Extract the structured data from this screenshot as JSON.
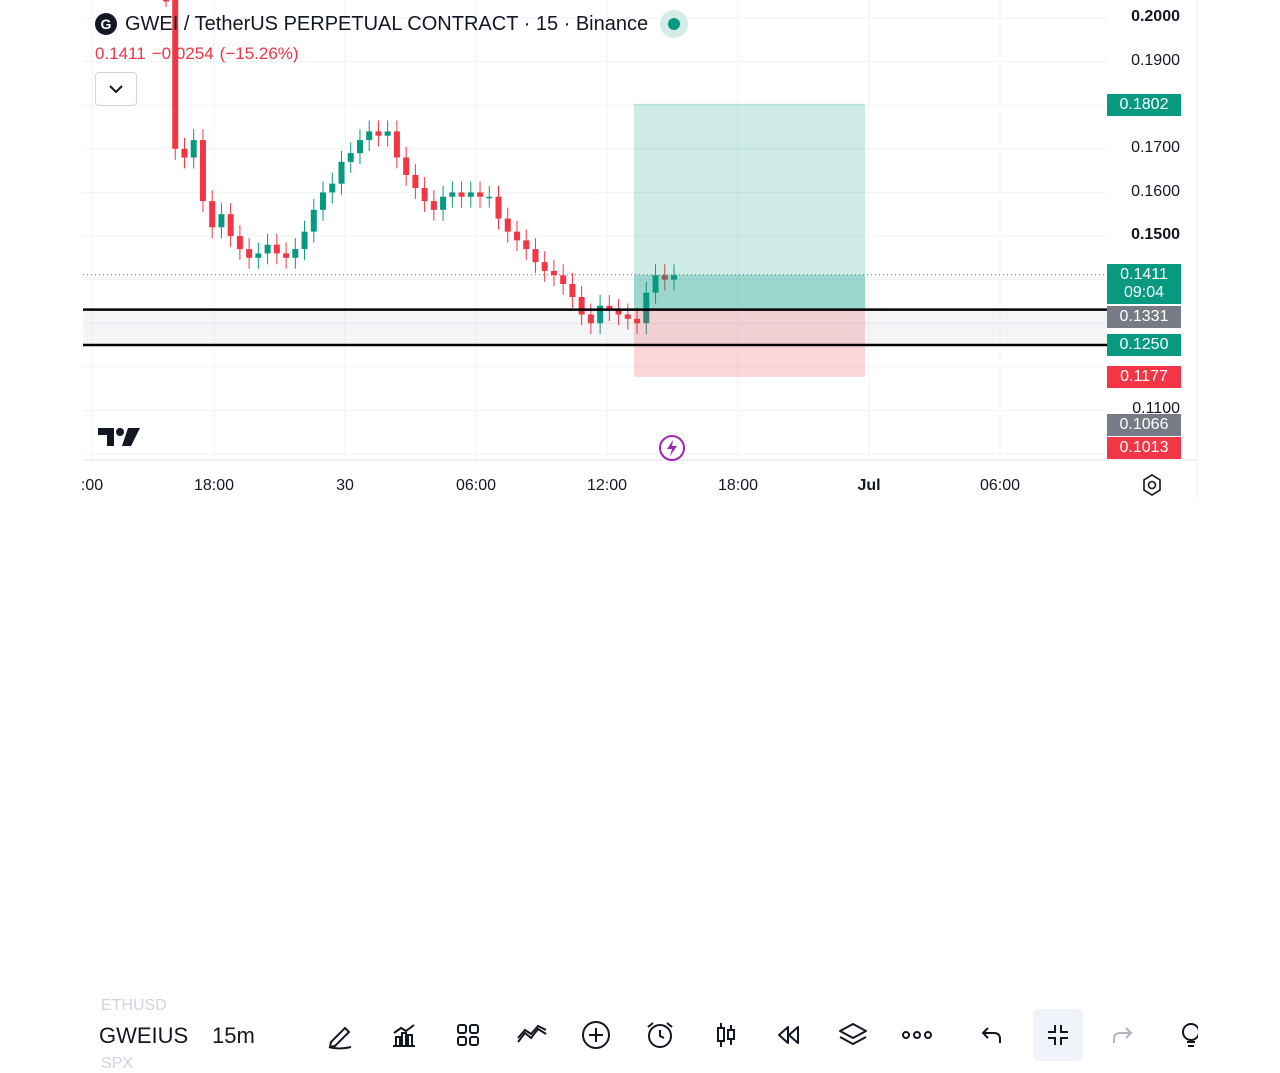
{
  "header": {
    "logo_letter": "G",
    "title": "GWEI / TetherUS PERPETUAL CONTRACT · 15 · Binance",
    "last": "0.1411",
    "change": "−0.0254",
    "change_pct": "(−15.26%)",
    "collapse_icon": "chevron-down-icon"
  },
  "price_axis": {
    "labels": [
      "0.2000",
      "0.1900",
      "0.1700",
      "0.1600",
      "0.1500",
      "0.1100"
    ],
    "bold_labels": [
      "0.2000",
      "0.1500"
    ],
    "tags": [
      {
        "value": "0.1802",
        "color": "#089981"
      },
      {
        "value": "0.1411",
        "sub": "09:04",
        "color": "#089981"
      },
      {
        "value": "0.1331",
        "color": "#787b86"
      },
      {
        "value": "0.1250",
        "color": "#089981"
      },
      {
        "value": "0.1177",
        "color": "#f23645"
      },
      {
        "value": "0.1066",
        "color": "#787b86"
      },
      {
        "value": "0.1013",
        "color": "#f23645"
      }
    ]
  },
  "time_axis": {
    "labels": [
      ":00",
      "18:00",
      "30",
      "06:00",
      "12:00",
      "18:00",
      "Jul",
      "06:00"
    ],
    "bold_labels": [
      "Jul"
    ]
  },
  "chart_data": {
    "type": "candlestick",
    "symbol": "GWEIUSDT.P",
    "interval": "15",
    "exchange": "Binance",
    "last_price": 0.1411,
    "horizontal_lines": [
      0.1331,
      0.125
    ],
    "position": {
      "type": "long",
      "entry": 0.1331,
      "target": 0.1802,
      "stop": 0.1177
    },
    "candles_close_approx": [
      0.205,
      0.17,
      0.168,
      0.172,
      0.158,
      0.152,
      0.155,
      0.15,
      0.147,
      0.145,
      0.146,
      0.148,
      0.146,
      0.145,
      0.147,
      0.151,
      0.156,
      0.16,
      0.162,
      0.167,
      0.169,
      0.172,
      0.174,
      0.173,
      0.174,
      0.168,
      0.164,
      0.161,
      0.158,
      0.156,
      0.159,
      0.16,
      0.159,
      0.16,
      0.159,
      0.159,
      0.154,
      0.151,
      0.149,
      0.147,
      0.144,
      0.142,
      0.141,
      0.139,
      0.136,
      0.132,
      0.13,
      0.134,
      0.133,
      0.132,
      0.131,
      0.13,
      0.137,
      0.141,
      0.14,
      0.141
    ]
  },
  "watermark": {
    "icon": "tradingview-logo-icon"
  },
  "indicator_badge": {
    "icon": "lightning-icon"
  },
  "settings": {
    "icon": "gear-icon"
  },
  "toolbar": {
    "symbol": "GWEIUS",
    "symbol_above": "ETHUSD",
    "symbol_below": "SPX",
    "interval": "15m",
    "tools": [
      {
        "name": "pen-icon"
      },
      {
        "name": "indicators-icon"
      },
      {
        "name": "layouts-icon"
      },
      {
        "name": "compare-icon"
      },
      {
        "name": "plus-icon"
      },
      {
        "name": "alarm-icon"
      },
      {
        "name": "candles-icon"
      },
      {
        "name": "replay-icon"
      },
      {
        "name": "layers-icon"
      },
      {
        "name": "more-icon"
      },
      {
        "name": "undo-icon"
      },
      {
        "name": "collapse-icon"
      },
      {
        "name": "redo-icon"
      },
      {
        "name": "idea-icon"
      }
    ]
  }
}
